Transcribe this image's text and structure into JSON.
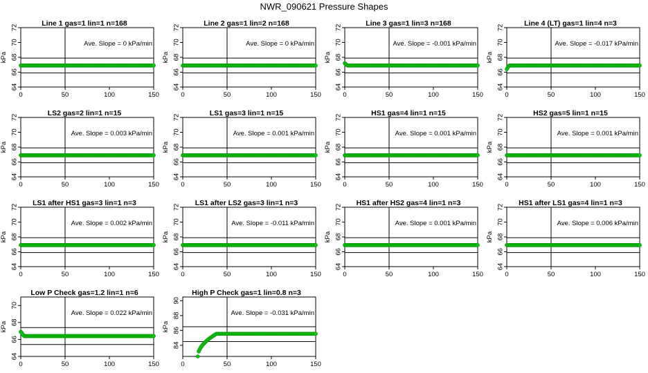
{
  "title": "NWR_090621  Pressure Shapes",
  "colors": {
    "points": "#11c411",
    "point_edge": "#0a9a0a",
    "axis": "#000000"
  },
  "chart_data": [
    {
      "type": "scatter",
      "title": "Line 1 gas=1 lin=1 n=168",
      "slope_label": "Ave. Slope =  0  kPa/min",
      "ylabel": "kPa",
      "xlim": [
        0,
        150
      ],
      "ylim": [
        64,
        72
      ],
      "xticks": [
        0,
        50,
        100,
        150
      ],
      "yticks": [
        64,
        66,
        68,
        70,
        72
      ],
      "vline": 50,
      "hlines": [
        65.9,
        67.9
      ],
      "level": 66.9
    },
    {
      "type": "scatter",
      "title": "Line 2 gas=1 lin=2 n=168",
      "slope_label": "Ave. Slope =  0  kPa/min",
      "ylabel": "kPa",
      "xlim": [
        0,
        150
      ],
      "ylim": [
        64,
        72
      ],
      "xticks": [
        0,
        50,
        100,
        150
      ],
      "yticks": [
        64,
        66,
        68,
        70,
        72
      ],
      "vline": 50,
      "hlines": [
        65.9,
        67.9
      ],
      "level": 66.9
    },
    {
      "type": "scatter",
      "title": "Line 3 gas=1 lin=3 n=168",
      "slope_label": "Ave. Slope =  -0.001  kPa/min",
      "ylabel": "kPa",
      "xlim": [
        0,
        150
      ],
      "ylim": [
        64,
        72
      ],
      "xticks": [
        0,
        50,
        100,
        150
      ],
      "yticks": [
        64,
        66,
        68,
        70,
        72
      ],
      "vline": 50,
      "hlines": [
        65.9,
        67.9
      ],
      "level": 66.9,
      "start": [
        67.2,
        67.1,
        67.0
      ]
    },
    {
      "type": "scatter",
      "title": "Line 4 (LT) gas=1 lin=4 n=3",
      "slope_label": "Ave. Slope =  -0.017  kPa/min",
      "ylabel": "kPa",
      "xlim": [
        0,
        150
      ],
      "ylim": [
        64,
        72
      ],
      "xticks": [
        0,
        50,
        100,
        150
      ],
      "yticks": [
        64,
        66,
        68,
        70,
        72
      ],
      "vline": 50,
      "hlines": [
        65.9,
        67.9
      ],
      "level": 66.9,
      "start": [
        66.4,
        66.6,
        66.8
      ]
    },
    {
      "type": "scatter",
      "title": "LS2 gas=2 lin=1 n=15",
      "slope_label": "Ave. Slope =  0.003  kPa/min",
      "ylabel": "kPa",
      "xlim": [
        0,
        150
      ],
      "ylim": [
        64,
        72
      ],
      "xticks": [
        0,
        50,
        100,
        150
      ],
      "yticks": [
        64,
        66,
        68,
        70,
        72
      ],
      "vline": 50,
      "hlines": [
        65.9,
        67.9
      ],
      "level": 66.9
    },
    {
      "type": "scatter",
      "title": "LS1 gas=3 lin=1 n=15",
      "slope_label": "Ave. Slope =  0.001  kPa/min",
      "ylabel": "kPa",
      "xlim": [
        0,
        150
      ],
      "ylim": [
        64,
        72
      ],
      "xticks": [
        0,
        50,
        100,
        150
      ],
      "yticks": [
        64,
        66,
        68,
        70,
        72
      ],
      "vline": 50,
      "hlines": [
        65.9,
        67.9
      ],
      "level": 66.9
    },
    {
      "type": "scatter",
      "title": "HS1 gas=4 lin=1 n=15",
      "slope_label": "Ave. Slope =  0.001  kPa/min",
      "ylabel": "kPa",
      "xlim": [
        0,
        150
      ],
      "ylim": [
        64,
        72
      ],
      "xticks": [
        0,
        50,
        100,
        150
      ],
      "yticks": [
        64,
        66,
        68,
        70,
        72
      ],
      "vline": 50,
      "hlines": [
        65.9,
        67.9
      ],
      "level": 66.9
    },
    {
      "type": "scatter",
      "title": "HS2 gas=5 lin=1 n=15",
      "slope_label": "Ave. Slope =  0.001  kPa/min",
      "ylabel": "kPa",
      "xlim": [
        0,
        150
      ],
      "ylim": [
        64,
        72
      ],
      "xticks": [
        0,
        50,
        100,
        150
      ],
      "yticks": [
        64,
        66,
        68,
        70,
        72
      ],
      "vline": 50,
      "hlines": [
        65.9,
        67.9
      ],
      "level": 66.9
    },
    {
      "type": "scatter",
      "title": "LS1 after HS1 gas=3 lin=1 n=3",
      "slope_label": "Ave. Slope =  0.002  kPa/min",
      "ylabel": "kPa",
      "xlim": [
        0,
        150
      ],
      "ylim": [
        64,
        72
      ],
      "xticks": [
        0,
        50,
        100,
        150
      ],
      "yticks": [
        64,
        66,
        68,
        70,
        72
      ],
      "vline": 50,
      "hlines": [
        65.9,
        67.9
      ],
      "level": 66.9
    },
    {
      "type": "scatter",
      "title": "LS1 after LS2 gas=3 lin=1 n=3",
      "slope_label": "Ave. Slope =  -0.011  kPa/min",
      "ylabel": "kPa",
      "xlim": [
        0,
        150
      ],
      "ylim": [
        64,
        72
      ],
      "xticks": [
        0,
        50,
        100,
        150
      ],
      "yticks": [
        64,
        66,
        68,
        70,
        72
      ],
      "vline": 50,
      "hlines": [
        65.9,
        67.9
      ],
      "level": 66.9
    },
    {
      "type": "scatter",
      "title": "HS1 after HS2 gas=4 lin=1 n=3",
      "slope_label": "Ave. Slope =  0.001  kPa/min",
      "ylabel": "kPa",
      "xlim": [
        0,
        150
      ],
      "ylim": [
        64,
        72
      ],
      "xticks": [
        0,
        50,
        100,
        150
      ],
      "yticks": [
        64,
        66,
        68,
        70,
        72
      ],
      "vline": 50,
      "hlines": [
        65.9,
        67.9
      ],
      "level": 66.9
    },
    {
      "type": "scatter",
      "title": "HS1 after LS1 gas=4 lin=1 n=3",
      "slope_label": "Ave. Slope =  0.006  kPa/min",
      "ylabel": "kPa",
      "xlim": [
        0,
        150
      ],
      "ylim": [
        64,
        72
      ],
      "xticks": [
        0,
        50,
        100,
        150
      ],
      "yticks": [
        64,
        66,
        68,
        70,
        72
      ],
      "vline": 50,
      "hlines": [
        65.9,
        67.9
      ],
      "level": 66.9
    },
    {
      "type": "scatter",
      "title": "Low P Check gas=1.2 lin=1 n=6",
      "slope_label": "Ave. Slope =  0.022  kPa/min",
      "ylabel": "kPa",
      "xlim": [
        0,
        150
      ],
      "ylim": [
        64,
        71
      ],
      "xticks": [
        0,
        50,
        100,
        150
      ],
      "yticks": [
        64,
        66,
        68,
        70
      ],
      "vline": 50,
      "hlines": [
        65.4,
        67.4
      ],
      "level": 66.4,
      "start": [
        66.9,
        66.8,
        66.6,
        66.5,
        66.4
      ]
    },
    {
      "type": "scatter",
      "title": "High P Check gas=1 lin=0.8 n=3",
      "slope_label": "Ave. Slope =  -0.031  kPa/min",
      "ylabel": "kPa",
      "xlim": [
        0,
        150
      ],
      "ylim": [
        82.5,
        90.5
      ],
      "xticks": [
        0,
        50,
        100,
        150
      ],
      "yticks": [
        84,
        86,
        88,
        90
      ],
      "vline": 50,
      "hlines": [
        84.5,
        86.5
      ],
      "level": 85.55,
      "rise": {
        "x0": 17,
        "y0": 82.5,
        "x1": 38,
        "y1": 85.55
      }
    }
  ]
}
